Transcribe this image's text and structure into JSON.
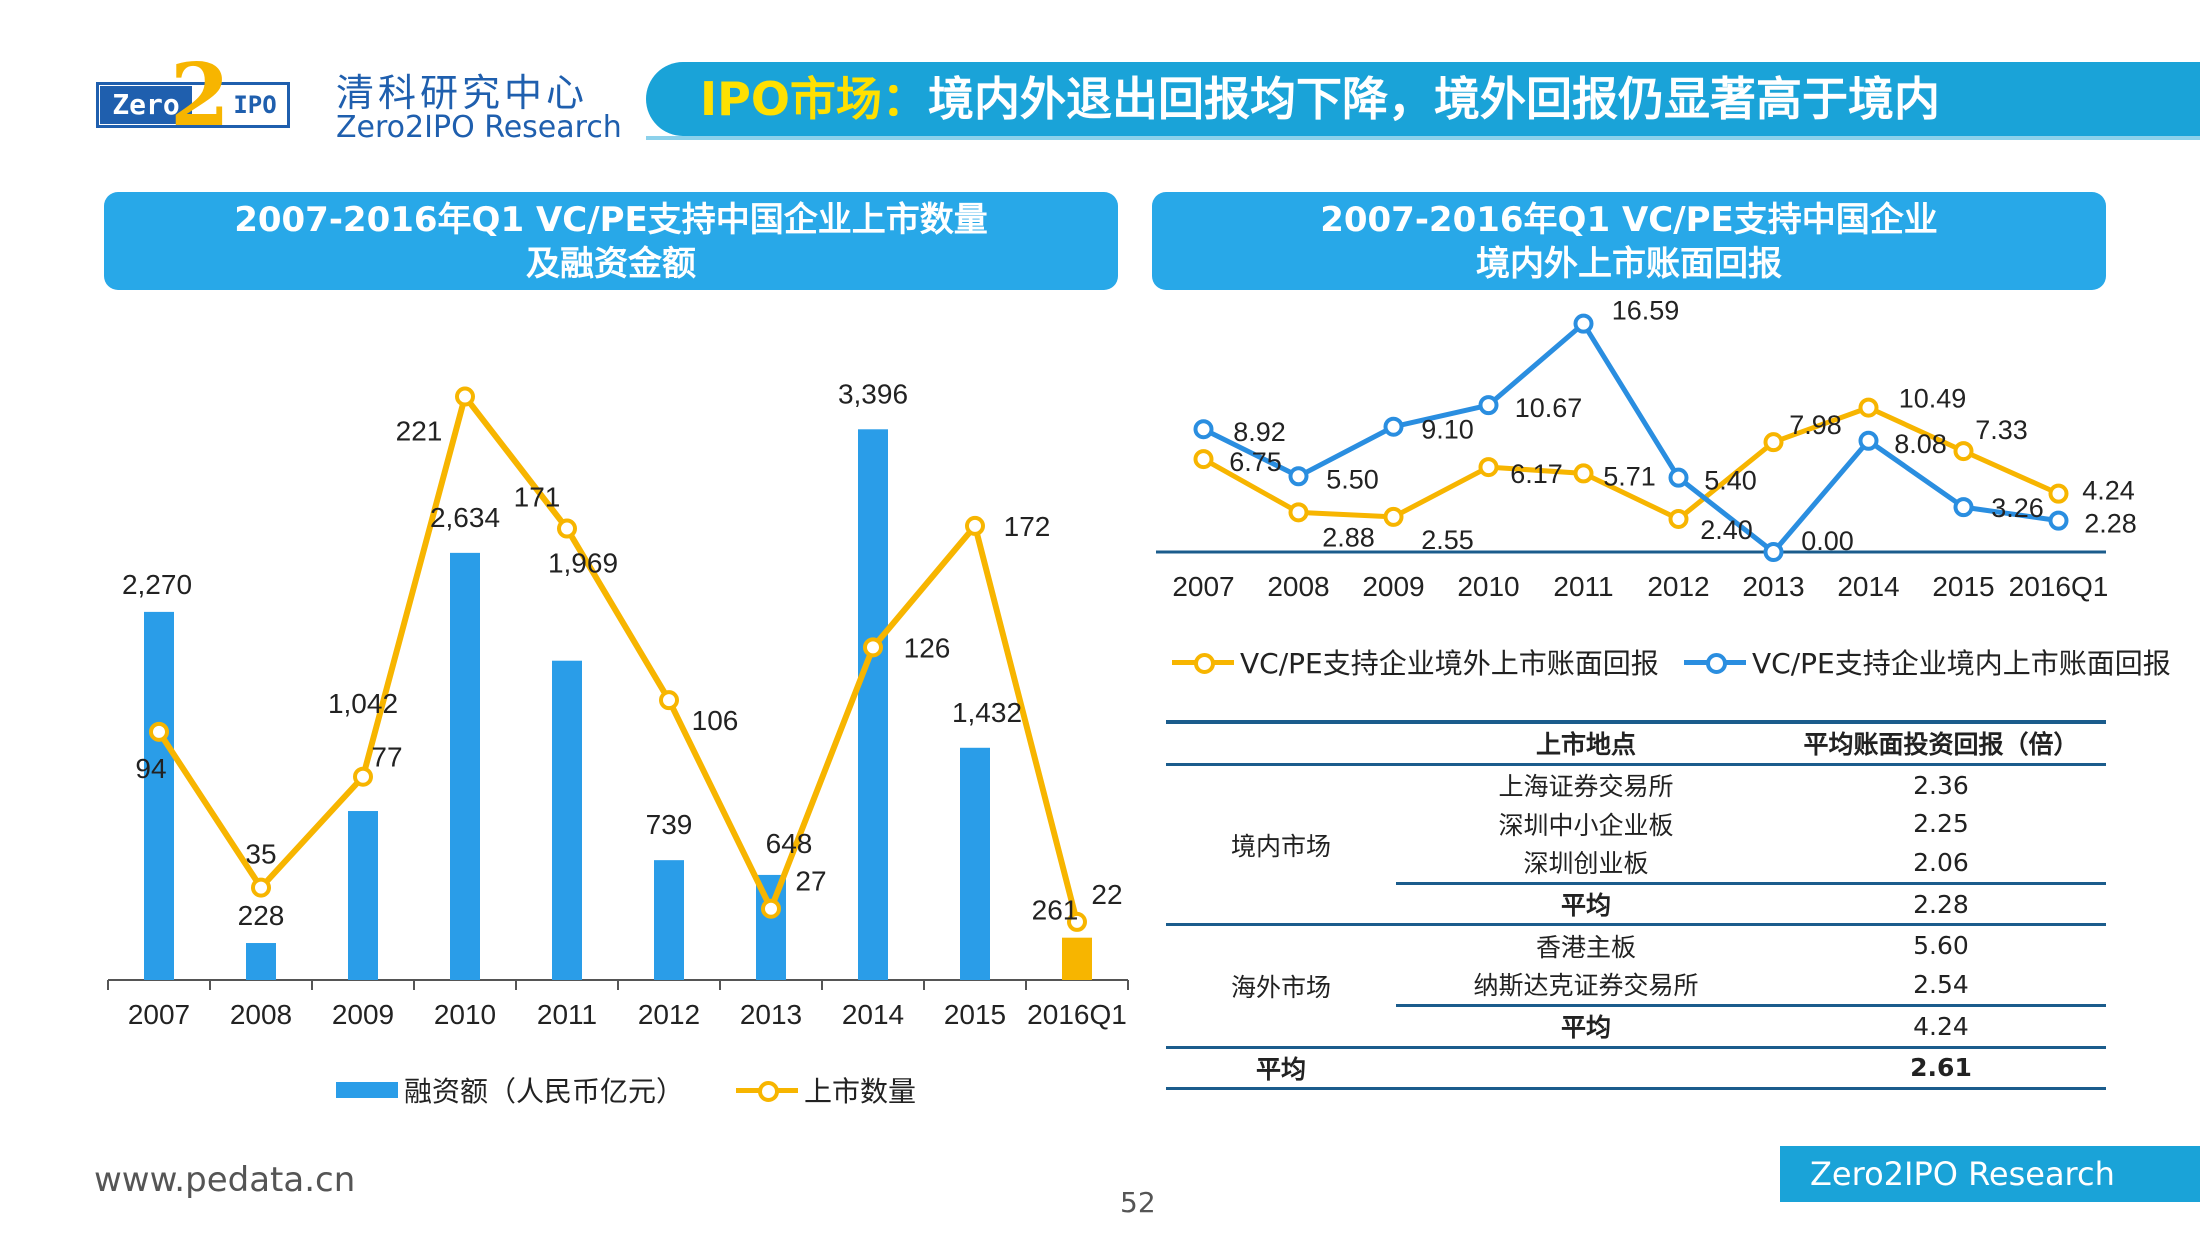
{
  "header": {
    "logo_left": "Zero",
    "logo_mid": "2",
    "logo_right": "IPO",
    "brand_cn": "清科研究中心",
    "brand_en": "Zero2IPO Research",
    "title_highlight": "IPO市场：",
    "title_rest": "境内外退出回报均下降，境外回报仍显著高于境内"
  },
  "left_section": {
    "title_line1": "2007-2016年Q1 VC/PE支持中国企业上市数量",
    "title_line2": "及融资金额"
  },
  "right_section": {
    "title_line1": "2007-2016年Q1 VC/PE支持中国企业",
    "title_line2": "境内外上市账面回报"
  },
  "chart_data": [
    {
      "type": "bar",
      "title": "2007-2016年Q1 VC/PE支持中国企业上市数量及融资金额",
      "categories": [
        "2007",
        "2008",
        "2009",
        "2010",
        "2011",
        "2012",
        "2013",
        "2014",
        "2015",
        "2016Q1"
      ],
      "series": [
        {
          "name": "融资额（人民币亿元）",
          "type": "bar",
          "values": [
            2270,
            228,
            1042,
            2634,
            1969,
            739,
            648,
            3396,
            1432,
            261
          ],
          "labels": [
            "2,270",
            "228",
            "1,042",
            "2,634",
            "1,969",
            "739",
            "648",
            "3,396",
            "1,432",
            "261"
          ],
          "color": "#2a9de8",
          "highlight_last_color": "#f7b500"
        },
        {
          "name": "上市数量",
          "type": "line",
          "values": [
            94,
            35,
            77,
            221,
            171,
            106,
            27,
            126,
            172,
            22
          ],
          "labels": [
            "94",
            "35",
            "77",
            "221",
            "171",
            "106",
            "27",
            "126",
            "172",
            "22"
          ],
          "color": "#f7b500"
        }
      ],
      "ylim_bar": [
        0,
        3700
      ],
      "ylim_line": [
        0,
        250
      ],
      "legend": "bottom"
    },
    {
      "type": "line",
      "title": "2007-2016年Q1 VC/PE支持中国企业境内外上市账面回报",
      "categories": [
        "2007",
        "2008",
        "2009",
        "2010",
        "2011",
        "2012",
        "2013",
        "2014",
        "2015",
        "2016Q1"
      ],
      "series": [
        {
          "name": "VC/PE支持企业境外上市账面回报",
          "values": [
            6.75,
            2.88,
            2.55,
            6.17,
            5.71,
            2.4,
            7.98,
            10.49,
            7.33,
            4.24
          ],
          "labels": [
            "6.75",
            "2.88",
            "2.55",
            "6.17",
            "5.71",
            "2.40",
            "7.98",
            "10.49",
            "7.33",
            "4.24"
          ],
          "color": "#f7b500"
        },
        {
          "name": "VC/PE支持企业境内上市账面回报",
          "values": [
            8.92,
            5.5,
            9.1,
            10.67,
            16.59,
            5.4,
            0.0,
            8.08,
            3.26,
            2.28
          ],
          "labels": [
            "8.92",
            "5.50",
            "9.10",
            "10.67",
            "16.59",
            "5.40",
            "0.00",
            "8.08",
            "3.26",
            "2.28"
          ],
          "color": "#2a8ee0"
        }
      ],
      "ylim": [
        0,
        18
      ],
      "legend": "bottom"
    }
  ],
  "table": {
    "headers": [
      "上市地点",
      "平均账面投资回报（倍）"
    ],
    "domestic": {
      "label": "境内市场",
      "rows": [
        {
          "loc": "上海证券交易所",
          "val": "2.36"
        },
        {
          "loc": "深圳中小企业板",
          "val": "2.25"
        },
        {
          "loc": "深圳创业板",
          "val": "2.06"
        }
      ],
      "avg_label": "平均",
      "avg_val": "2.28"
    },
    "overseas": {
      "label": "海外市场",
      "rows": [
        {
          "loc": "香港主板",
          "val": "5.60"
        },
        {
          "loc": "纳斯达克证券交易所",
          "val": "2.54"
        }
      ],
      "avg_label": "平均",
      "avg_val": "4.24"
    },
    "total_label": "平均",
    "total_val": "2.61"
  },
  "footer": {
    "url": "www.pedata.cn",
    "page": "52",
    "brand": "Zero2IPO Research"
  },
  "colors": {
    "accent": "#1aa3d8",
    "bar": "#2a9de8",
    "line_overseas": "#f7b500",
    "line_domestic": "#2a8ee0",
    "banner": "#28a8e8"
  }
}
